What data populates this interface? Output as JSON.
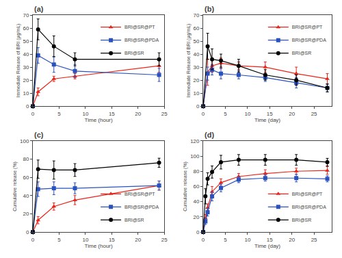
{
  "chart_data": [
    {
      "type": "line",
      "title": "(a)",
      "xlabel": "Time (hour)",
      "ylabel": "Immediate Release of BRI (μg/mL)",
      "x": [
        0,
        1,
        4,
        8,
        24
      ],
      "xlim": [
        0,
        25
      ],
      "ylim": [
        0,
        70
      ],
      "xticks": [
        0,
        5,
        10,
        15,
        20,
        25
      ],
      "yticks": [
        0,
        10,
        20,
        30,
        40,
        50,
        60,
        70
      ],
      "grid": false,
      "legend": "upper right",
      "series": [
        {
          "name": "BRI@SR@PT",
          "color": "#e8251a",
          "marker": "triangle",
          "values": [
            0,
            11,
            21,
            23,
            31
          ],
          "yerr": [
            0,
            3,
            2,
            2,
            5
          ]
        },
        {
          "name": "BRI@SR@PDA",
          "color": "#2a52be",
          "marker": "square",
          "values": [
            0,
            39,
            32,
            27,
            24
          ],
          "yerr": [
            0,
            6,
            6,
            5,
            5
          ]
        },
        {
          "name": "BRI@SR",
          "color": "#000000",
          "marker": "circle",
          "values": [
            0,
            59,
            46,
            36,
            36
          ],
          "yerr": [
            0,
            8,
            8,
            5,
            5
          ]
        }
      ]
    },
    {
      "type": "line",
      "title": "(b)",
      "xlabel": "Time (day)",
      "ylabel": "Immediate Release of BRI (μg/mL)",
      "x": [
        0,
        1,
        2,
        4,
        8,
        14,
        21,
        28
      ],
      "xlim": [
        0,
        29
      ],
      "ylim": [
        0,
        70
      ],
      "xticks": [
        0,
        5,
        10,
        15,
        20,
        25
      ],
      "yticks": [
        0,
        10,
        20,
        30,
        40,
        50,
        60,
        70
      ],
      "grid": false,
      "legend": "upper right",
      "series": [
        {
          "name": "BRI@SR@PT",
          "color": "#e8251a",
          "marker": "triangle",
          "values": [
            0,
            26,
            31,
            33,
            31,
            30,
            25,
            21
          ],
          "yerr": [
            0,
            10,
            5,
            4,
            3,
            4,
            5,
            4
          ]
        },
        {
          "name": "BRI@SR@PDA",
          "color": "#2a52be",
          "marker": "square",
          "values": [
            0,
            25,
            28,
            25,
            24,
            22,
            18,
            14
          ],
          "yerr": [
            0,
            5,
            4,
            4,
            3,
            3,
            4,
            3
          ]
        },
        {
          "name": "BRI@SR",
          "color": "#000000",
          "marker": "circle",
          "values": [
            0,
            46,
            36,
            35,
            31,
            24,
            20,
            14
          ],
          "yerr": [
            0,
            10,
            8,
            5,
            5,
            4,
            4,
            3
          ]
        }
      ]
    },
    {
      "type": "line",
      "title": "(c)",
      "xlabel": "Time (hour)",
      "ylabel": "Cumulative release (%)",
      "x": [
        0,
        1,
        4,
        8,
        24
      ],
      "xlim": [
        0,
        25
      ],
      "ylim": [
        0,
        100
      ],
      "xticks": [
        0,
        5,
        10,
        15,
        20,
        25
      ],
      "yticks": [
        0,
        20,
        40,
        60,
        80,
        100
      ],
      "grid": false,
      "legend": "lower right",
      "series": [
        {
          "name": "BRI@SR@PT",
          "color": "#e8251a",
          "marker": "triangle",
          "values": [
            0,
            13,
            28,
            35,
            51
          ],
          "yerr": [
            0,
            4,
            4,
            5,
            5
          ]
        },
        {
          "name": "BRI@SR@PDA",
          "color": "#2a52be",
          "marker": "square",
          "values": [
            0,
            47,
            48,
            48,
            51
          ],
          "yerr": [
            0,
            8,
            7,
            6,
            5
          ]
        },
        {
          "name": "BRI@SR",
          "color": "#000000",
          "marker": "circle",
          "values": [
            0,
            69,
            68,
            68,
            76
          ],
          "yerr": [
            0,
            10,
            10,
            7,
            5
          ]
        }
      ]
    },
    {
      "type": "line",
      "title": "(d)",
      "xlabel": "Time (day)",
      "ylabel": "Cumulative release (%)",
      "x": [
        0,
        0.5,
        1,
        2,
        4,
        8,
        14,
        21,
        28
      ],
      "xlim": [
        0,
        29
      ],
      "ylim": [
        0,
        120
      ],
      "xticks": [
        0,
        5,
        10,
        15,
        20,
        25
      ],
      "yticks": [
        0,
        20,
        40,
        60,
        80,
        100,
        120
      ],
      "grid": false,
      "legend": "lower right",
      "series": [
        {
          "name": "BRI@SR@PT",
          "color": "#e8251a",
          "marker": "triangle",
          "values": [
            0,
            18,
            32,
            53,
            65,
            73,
            77,
            80,
            81
          ],
          "yerr": [
            0,
            5,
            5,
            7,
            5,
            4,
            5,
            4,
            5
          ]
        },
        {
          "name": "BRI@SR@PDA",
          "color": "#2a52be",
          "marker": "square",
          "values": [
            0,
            14,
            26,
            47,
            58,
            69,
            71,
            71,
            70
          ],
          "yerr": [
            0,
            4,
            5,
            6,
            5,
            4,
            4,
            5,
            4
          ]
        },
        {
          "name": "BRI@SR",
          "color": "#000000",
          "marker": "circle",
          "values": [
            0,
            47,
            70,
            79,
            92,
            95,
            95,
            95,
            92
          ],
          "yerr": [
            0,
            10,
            8,
            8,
            9,
            7,
            7,
            7,
            5
          ]
        }
      ]
    }
  ]
}
